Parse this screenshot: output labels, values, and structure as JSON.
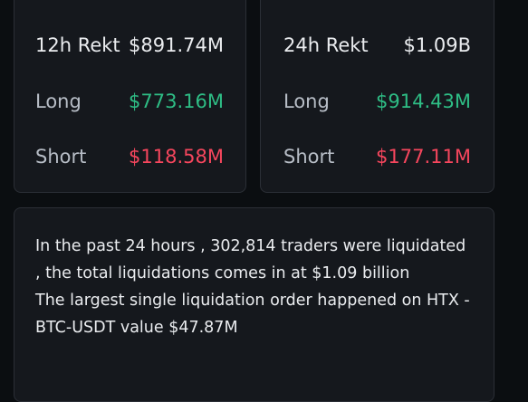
{
  "rekt_12h": {
    "title": "12h Rekt",
    "total": "$891.74M",
    "long_label": "Long",
    "long_value": "$773.16M",
    "short_label": "Short",
    "short_value": "$118.58M"
  },
  "rekt_24h": {
    "title": "24h Rekt",
    "total": "$1.09B",
    "long_label": "Long",
    "long_value": "$914.43M",
    "short_label": "Short",
    "short_value": "$177.11M"
  },
  "summary": {
    "line1": "In the past 24 hours , 302,814 traders were liquidated , the total liquidations comes in at $1.09 billion",
    "line2": "The largest single liquidation order happened on HTX - BTC-USDT value $47.87M"
  },
  "colors": {
    "long": "#2ebd85",
    "short": "#f6465d",
    "background": "#0b0e11",
    "card": "#15181d"
  }
}
